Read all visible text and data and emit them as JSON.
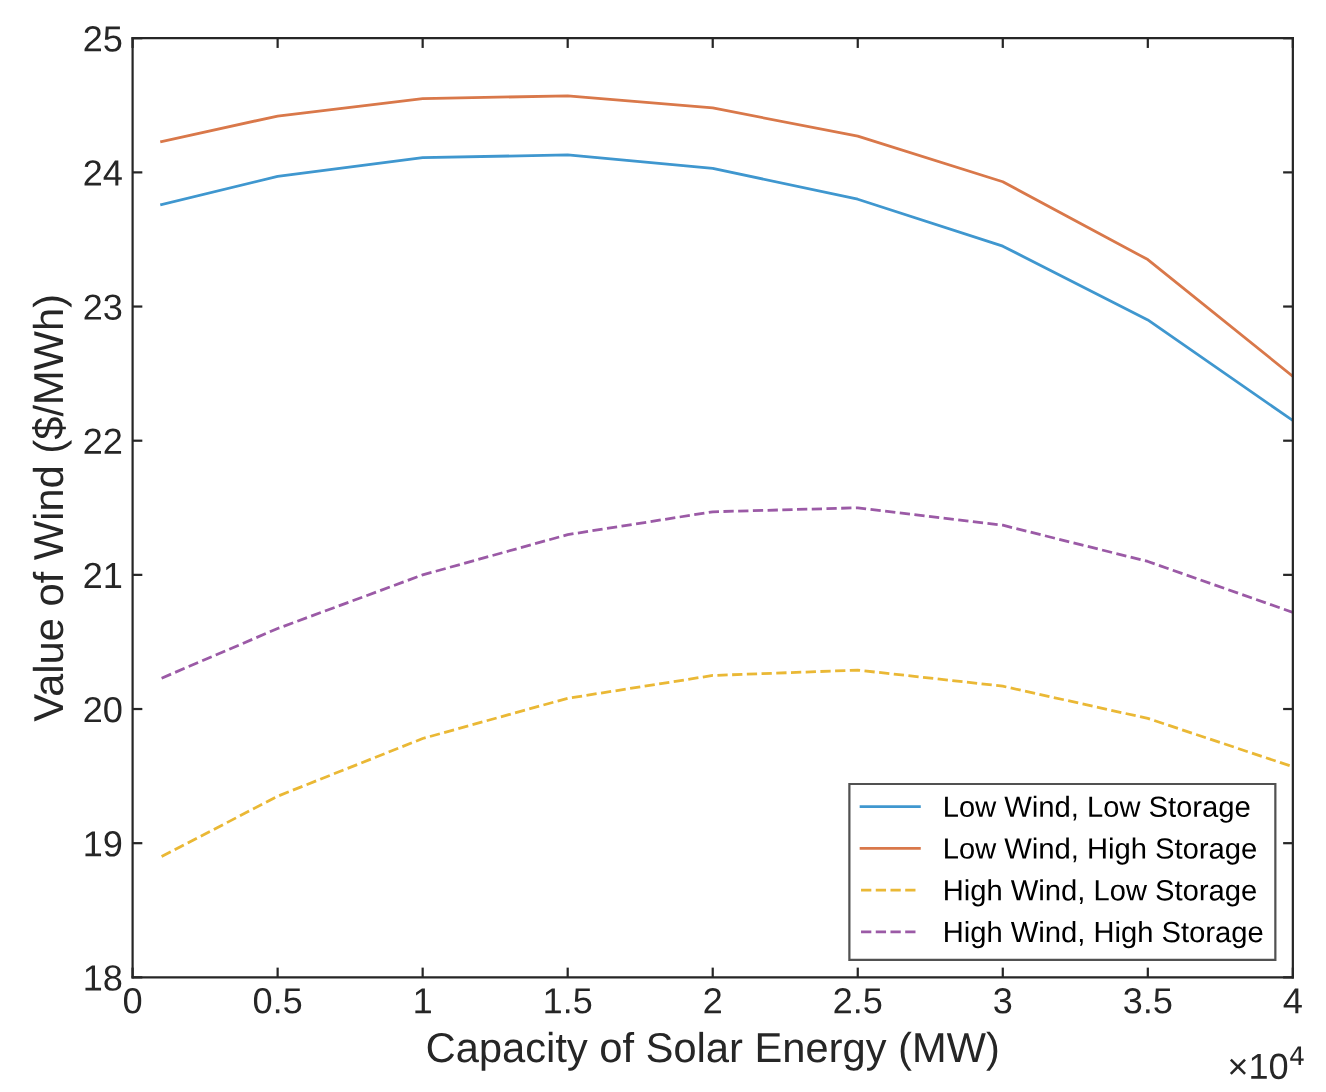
{
  "chart_data": {
    "type": "line",
    "xlabel": "Capacity of Solar Energy (MW)",
    "ylabel": "Value of Wind ($/MWh)",
    "x": [
      0.1,
      0.5,
      1,
      1.5,
      2,
      2.5,
      3,
      3.5,
      4
    ],
    "series": [
      {
        "name": "Low Wind, Low Storage",
        "color": "#3f97cf",
        "line_style": "solid",
        "values": [
          23.76,
          23.97,
          24.11,
          24.13,
          24.03,
          23.8,
          23.45,
          22.9,
          22.15
        ]
      },
      {
        "name": "Low Wind, High Storage",
        "color": "#d9784a",
        "line_style": "solid",
        "values": [
          24.23,
          24.42,
          24.55,
          24.57,
          24.48,
          24.27,
          23.93,
          23.35,
          22.48
        ]
      },
      {
        "name": "High Wind, Low Storage",
        "color": "#eab835",
        "line_style": "dashed",
        "values": [
          18.9,
          19.35,
          19.78,
          20.08,
          20.25,
          20.29,
          20.17,
          19.93,
          19.57
        ]
      },
      {
        "name": "High Wind, High Storage",
        "color": "#9b5aa6",
        "line_style": "dashed",
        "values": [
          20.23,
          20.6,
          21.0,
          21.3,
          21.47,
          21.5,
          21.37,
          21.1,
          20.72
        ]
      }
    ],
    "xlim": [
      0,
      4
    ],
    "xticks": [
      0,
      0.5,
      1,
      1.5,
      2,
      2.5,
      3,
      3.5,
      4
    ],
    "ylim": [
      18,
      25
    ],
    "yticks": [
      18,
      19,
      20,
      21,
      22,
      23,
      24,
      25
    ],
    "annotations": [
      "×10$^{4}$"
    ],
    "grid": false,
    "legend": "bottom right",
    "marker": "none"
  }
}
